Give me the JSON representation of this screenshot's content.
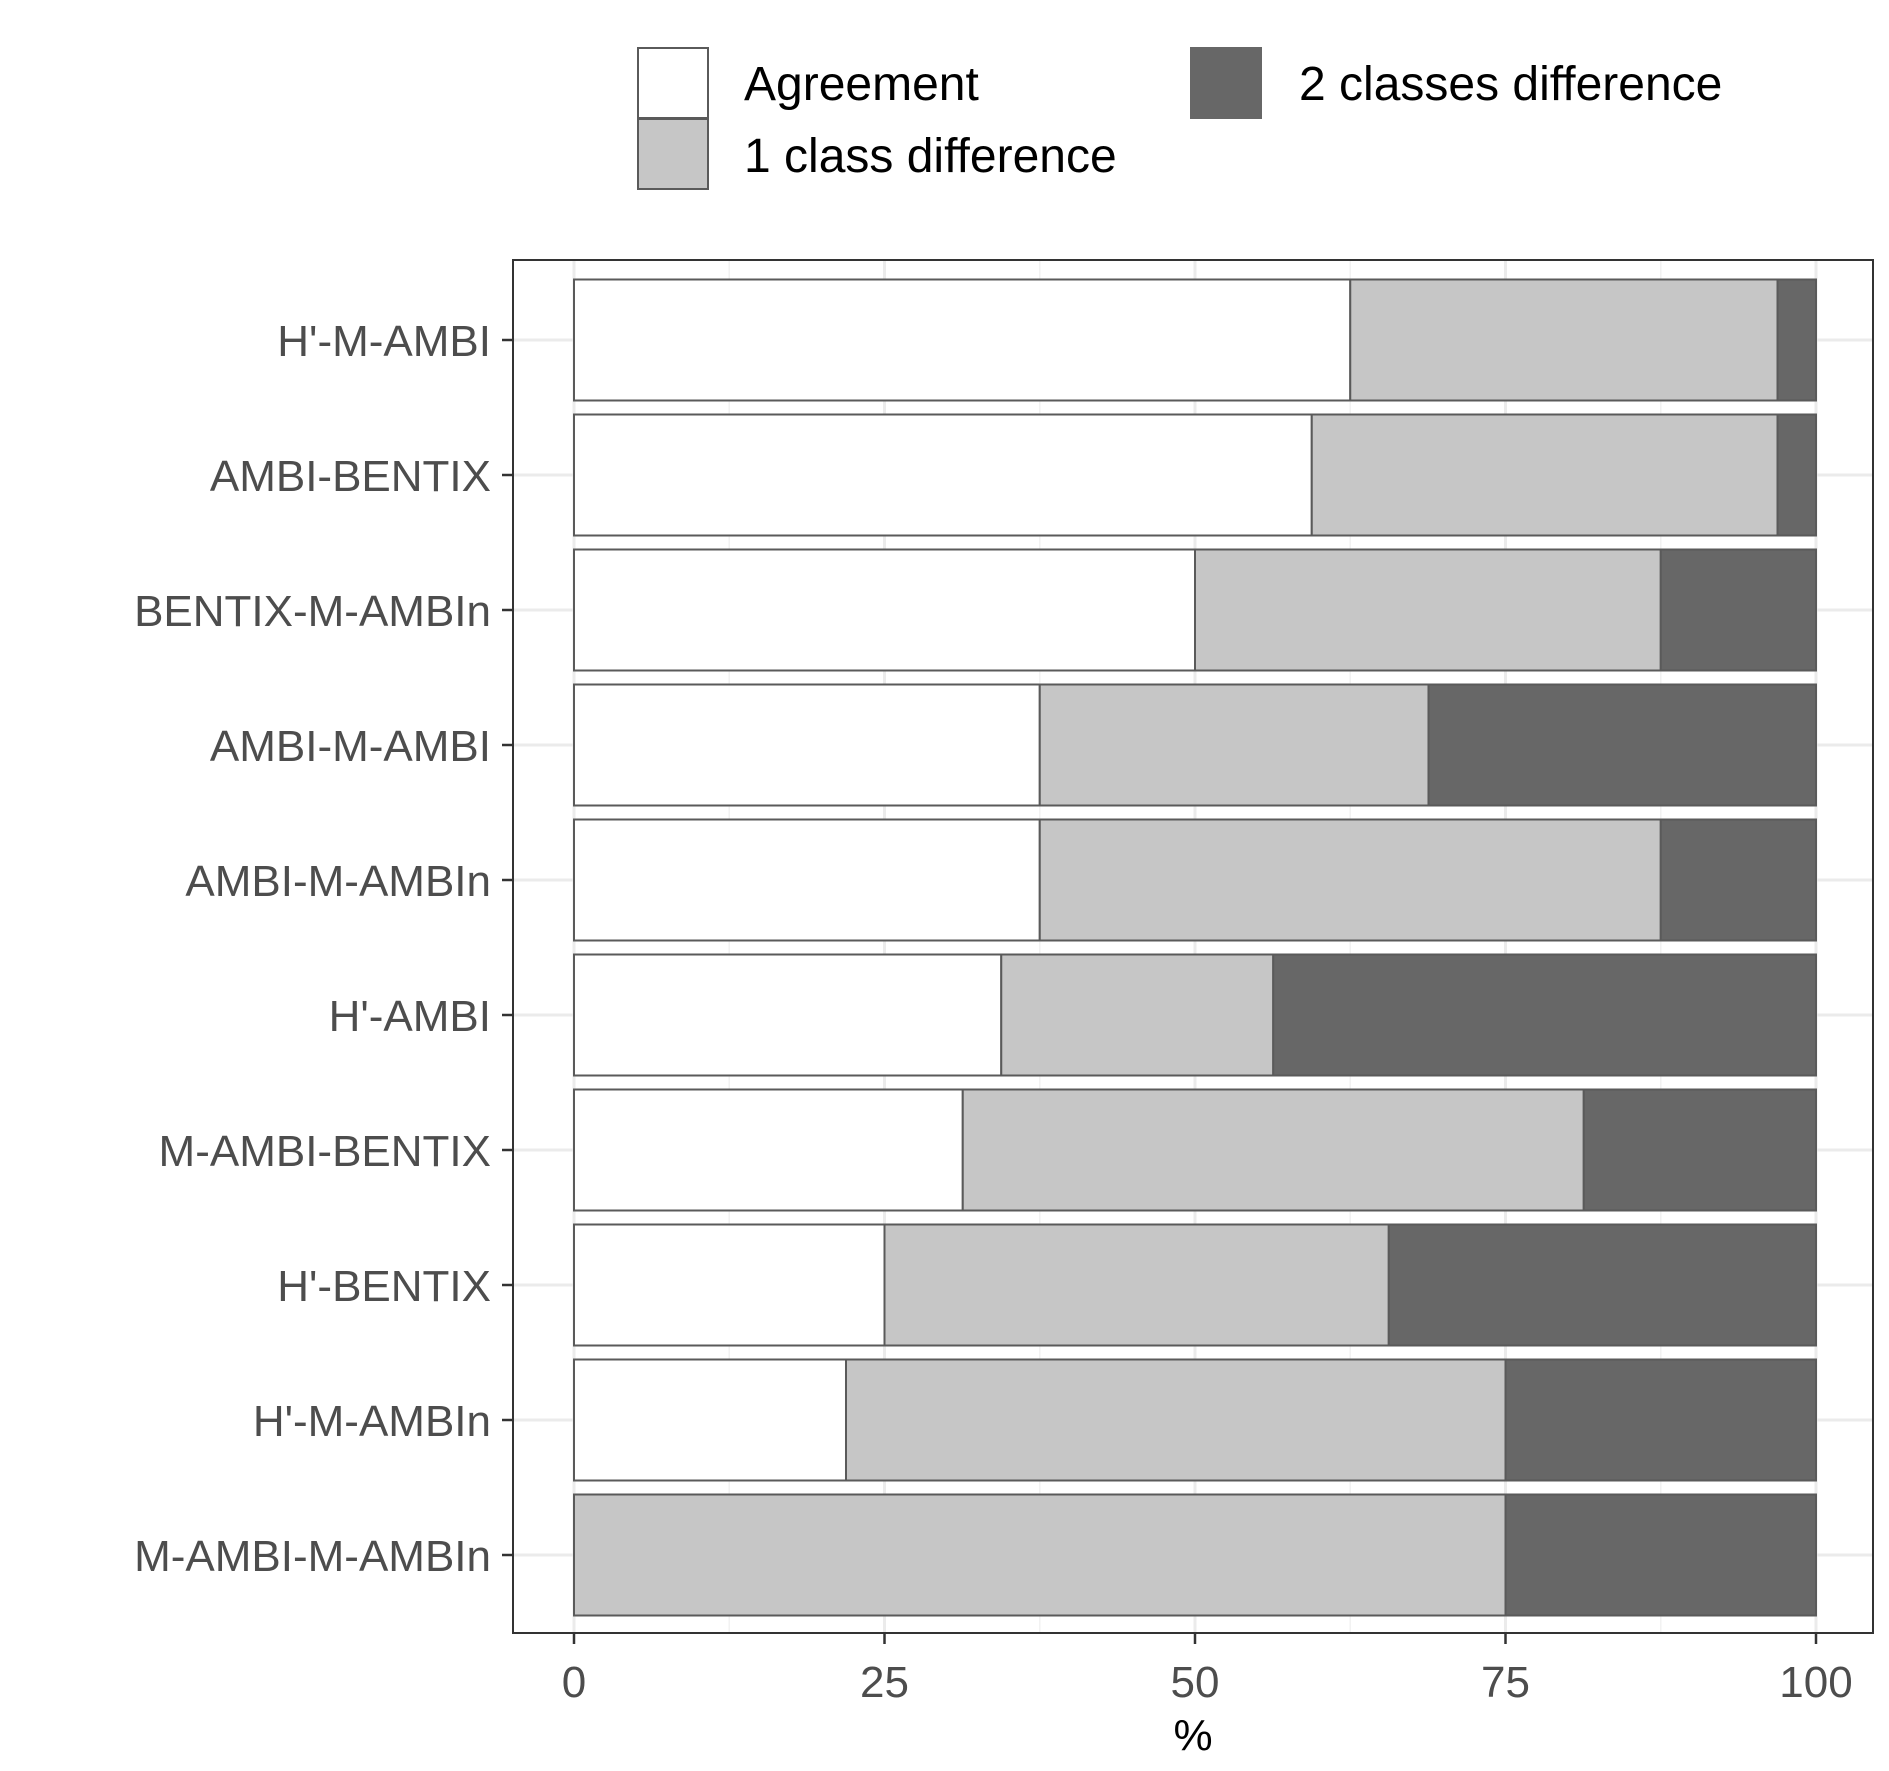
{
  "chart_data": {
    "type": "bar",
    "orientation": "horizontal",
    "stacked": true,
    "title": "",
    "xlabel": "%",
    "ylabel": "",
    "xlim": [
      0,
      100
    ],
    "x_ticks": [
      "0",
      "25",
      "50",
      "75",
      "100"
    ],
    "grid": true,
    "legend_position": "top",
    "categories": [
      "H'-M-AMBI",
      "AMBI-BENTIX",
      "BENTIX-M-AMBIn",
      "AMBI-M-AMBI",
      "AMBI-M-AMBIn",
      "H'-AMBI",
      "M-AMBI-BENTIX",
      "H'-BENTIX",
      "H'-M-AMBIn",
      "M-AMBI-M-AMBIn"
    ],
    "series": [
      {
        "name": "Agreement",
        "color": "#ffffff",
        "values": [
          62.5,
          59.4,
          50.0,
          37.5,
          37.5,
          34.4,
          31.3,
          25.0,
          21.9,
          0.0
        ]
      },
      {
        "name": "1 class difference",
        "color": "#c6c6c6",
        "values": [
          34.4,
          37.5,
          37.5,
          31.3,
          50.0,
          21.9,
          50.0,
          40.6,
          53.1,
          75.0
        ]
      },
      {
        "name": "2 classes difference",
        "color": "#676767",
        "values": [
          3.1,
          3.1,
          12.5,
          31.2,
          12.5,
          43.7,
          18.7,
          34.4,
          25.0,
          25.0
        ]
      }
    ]
  }
}
